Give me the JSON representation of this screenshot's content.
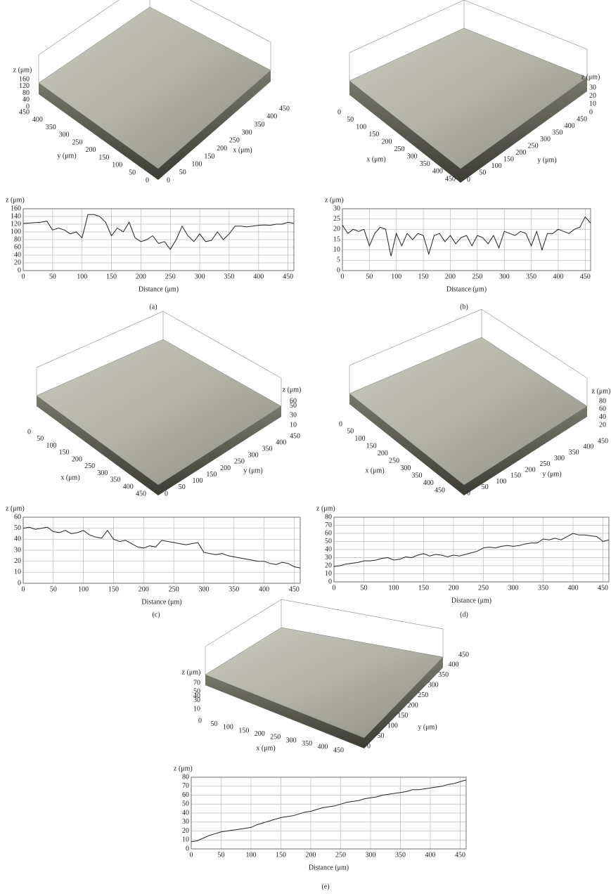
{
  "chart_data": [
    {
      "type": "line",
      "label": "(a)",
      "xlabel": "Distance (μm)",
      "ylabel": "z (μm)",
      "color": "#222222",
      "grid": true,
      "xlim": [
        0,
        460
      ],
      "ylim": [
        0,
        160
      ],
      "xticks": [
        0,
        50,
        100,
        150,
        200,
        250,
        300,
        350,
        400,
        450
      ],
      "yticks": [
        0,
        20,
        40,
        60,
        80,
        100,
        120,
        140,
        160
      ],
      "x": [
        0,
        10,
        20,
        30,
        40,
        50,
        60,
        70,
        80,
        90,
        100,
        110,
        120,
        130,
        140,
        150,
        160,
        170,
        180,
        190,
        200,
        210,
        220,
        230,
        240,
        250,
        260,
        270,
        280,
        290,
        300,
        310,
        320,
        330,
        340,
        350,
        360,
        370,
        380,
        390,
        400,
        410,
        420,
        430,
        440,
        450,
        460
      ],
      "values": [
        122,
        123,
        124,
        125,
        128,
        105,
        110,
        105,
        95,
        100,
        85,
        145,
        145,
        140,
        125,
        90,
        110,
        100,
        125,
        85,
        75,
        80,
        90,
        70,
        75,
        55,
        80,
        115,
        90,
        75,
        95,
        75,
        78,
        100,
        80,
        95,
        115,
        115,
        113,
        115,
        117,
        118,
        117,
        120,
        120,
        125,
        122
      ],
      "surface": {
        "zlabel": "z (μm)",
        "xlabel": "x (μm)",
        "ylabel": "y (μm)",
        "zticks": [
          0,
          40,
          80,
          120,
          160
        ],
        "xticks": [
          0,
          50,
          100,
          150,
          200,
          250,
          300,
          350,
          400,
          450
        ],
        "yticks": [
          0,
          50,
          100,
          150,
          200,
          250,
          300,
          350,
          400,
          450
        ]
      }
    },
    {
      "type": "line",
      "label": "(b)",
      "xlabel": "Distance (μm)",
      "ylabel": "z (μm)",
      "color": "#222222",
      "grid": true,
      "xlim": [
        0,
        460
      ],
      "ylim": [
        0,
        30
      ],
      "xticks": [
        0,
        50,
        100,
        150,
        200,
        250,
        300,
        350,
        400,
        450
      ],
      "yticks": [
        0,
        5,
        10,
        15,
        20,
        25,
        30
      ],
      "x": [
        0,
        10,
        20,
        30,
        40,
        50,
        60,
        70,
        80,
        90,
        100,
        110,
        120,
        130,
        140,
        150,
        160,
        170,
        180,
        190,
        200,
        210,
        220,
        230,
        240,
        250,
        260,
        270,
        280,
        290,
        300,
        310,
        320,
        330,
        340,
        350,
        360,
        370,
        380,
        390,
        400,
        410,
        420,
        430,
        440,
        450,
        460
      ],
      "values": [
        22,
        18,
        20,
        19,
        20,
        12,
        18,
        21,
        20,
        7,
        18,
        12,
        18,
        15,
        18,
        17,
        8,
        17,
        18,
        14,
        17,
        13,
        16,
        17,
        12,
        17,
        16,
        13,
        17,
        11,
        19,
        18,
        17,
        19,
        18,
        12,
        19,
        10,
        18,
        18,
        20,
        19,
        18,
        20,
        21,
        26,
        23
      ],
      "surface": {
        "zlabel": "z (μm)",
        "xlabel": "x (μm)",
        "ylabel": "y (μm)",
        "zticks": [
          0,
          10,
          20,
          30
        ],
        "xticks": [
          0,
          50,
          100,
          150,
          200,
          250,
          300,
          350,
          400,
          450
        ],
        "yticks": [
          0,
          50,
          100,
          150,
          200,
          250,
          300,
          350,
          400,
          450
        ]
      }
    },
    {
      "type": "line",
      "label": "(c)",
      "xlabel": "Distance (μm)",
      "ylabel": "z (μm)",
      "color": "#222222",
      "grid": true,
      "xlim": [
        0,
        460
      ],
      "ylim": [
        0,
        60
      ],
      "xticks": [
        0,
        50,
        100,
        150,
        200,
        250,
        300,
        350,
        400,
        450
      ],
      "yticks": [
        0,
        10,
        20,
        30,
        40,
        50,
        60
      ],
      "x": [
        0,
        10,
        20,
        30,
        40,
        50,
        60,
        70,
        80,
        90,
        100,
        110,
        120,
        130,
        140,
        150,
        160,
        170,
        180,
        190,
        200,
        210,
        220,
        230,
        240,
        250,
        260,
        270,
        280,
        290,
        300,
        310,
        320,
        330,
        340,
        350,
        360,
        370,
        380,
        390,
        400,
        410,
        420,
        430,
        440,
        450,
        460
      ],
      "values": [
        50,
        51,
        49,
        50,
        51,
        47,
        46,
        48,
        45,
        46,
        48,
        44,
        42,
        41,
        48,
        40,
        38,
        39,
        36,
        33,
        32,
        34,
        33,
        39,
        38,
        37,
        36,
        35,
        36,
        37,
        28,
        27,
        26,
        27,
        25,
        24,
        23,
        22,
        21,
        20,
        20,
        18,
        17,
        19,
        18,
        15,
        14
      ],
      "surface": {
        "zlabel": "z (μm)",
        "xlabel": "x (μm)",
        "ylabel": "y (μm)",
        "zticks": [
          10,
          30,
          50,
          60
        ],
        "xticks": [
          0,
          50,
          100,
          150,
          200,
          250,
          300,
          350,
          400,
          450
        ],
        "yticks": [
          0,
          50,
          100,
          150,
          200,
          250,
          300,
          350,
          400,
          450
        ]
      }
    },
    {
      "type": "line",
      "label": "(d)",
      "xlabel": "Distance (μm)",
      "ylabel": "z (μm)",
      "color": "#222222",
      "grid": true,
      "xlim": [
        0,
        460
      ],
      "ylim": [
        0,
        80
      ],
      "xticks": [
        0,
        50,
        100,
        150,
        200,
        250,
        300,
        350,
        400,
        450
      ],
      "yticks": [
        0,
        10,
        20,
        30,
        40,
        50,
        60,
        70,
        80
      ],
      "x": [
        0,
        10,
        20,
        30,
        40,
        50,
        60,
        70,
        80,
        90,
        100,
        110,
        120,
        130,
        140,
        150,
        160,
        170,
        180,
        190,
        200,
        210,
        220,
        230,
        240,
        250,
        260,
        270,
        280,
        290,
        300,
        310,
        320,
        330,
        340,
        350,
        360,
        370,
        380,
        390,
        400,
        410,
        420,
        430,
        440,
        450,
        460
      ],
      "values": [
        19,
        20,
        22,
        23,
        24,
        26,
        26,
        27,
        29,
        30,
        27,
        28,
        31,
        30,
        33,
        35,
        32,
        34,
        33,
        31,
        33,
        32,
        34,
        36,
        38,
        42,
        43,
        42,
        44,
        45,
        44,
        45,
        47,
        48,
        48,
        53,
        52,
        54,
        52,
        56,
        60,
        58,
        58,
        57,
        56,
        50,
        52
      ],
      "surface": {
        "zlabel": "z (μm)",
        "xlabel": "x (μm)",
        "ylabel": "y (μm)",
        "zticks": [
          20,
          40,
          60,
          80
        ],
        "xticks": [
          0,
          50,
          100,
          150,
          200,
          250,
          300,
          350,
          400,
          450
        ],
        "yticks": [
          0,
          50,
          100,
          150,
          200,
          250,
          300,
          350,
          400,
          450
        ]
      }
    },
    {
      "type": "line",
      "label": "(e)",
      "xlabel": "Distance (μm)",
      "ylabel": "z (μm)",
      "color": "#222222",
      "grid": true,
      "xlim": [
        0,
        460
      ],
      "ylim": [
        0,
        80
      ],
      "xticks": [
        0,
        50,
        100,
        150,
        200,
        250,
        300,
        350,
        400,
        450
      ],
      "yticks": [
        0,
        10,
        20,
        30,
        40,
        50,
        60,
        70,
        80
      ],
      "x": [
        0,
        10,
        20,
        30,
        40,
        50,
        60,
        70,
        80,
        90,
        100,
        110,
        120,
        130,
        140,
        150,
        160,
        170,
        180,
        190,
        200,
        210,
        220,
        230,
        240,
        250,
        260,
        270,
        280,
        290,
        300,
        310,
        320,
        330,
        340,
        350,
        360,
        370,
        380,
        390,
        400,
        410,
        420,
        430,
        440,
        450,
        460
      ],
      "values": [
        8,
        9,
        12,
        15,
        17,
        19,
        20,
        21,
        22,
        23,
        24,
        27,
        29,
        31,
        33,
        35,
        36,
        37,
        39,
        41,
        42,
        44,
        46,
        47,
        48,
        50,
        52,
        53,
        54,
        56,
        57,
        58,
        60,
        61,
        62,
        63,
        64,
        66,
        66,
        67,
        68,
        69,
        70,
        72,
        73,
        75,
        77
      ],
      "surface": {
        "zlabel": "z (μm)",
        "xlabel": "x (μm)",
        "ylabel": "y (μm)",
        "zticks": [
          10,
          30,
          40,
          50,
          70
        ],
        "xticks": [
          0,
          50,
          100,
          150,
          200,
          250,
          300,
          350,
          400,
          450
        ],
        "yticks": [
          0,
          50,
          100,
          150,
          200,
          250,
          300,
          350,
          400,
          450
        ]
      }
    }
  ]
}
